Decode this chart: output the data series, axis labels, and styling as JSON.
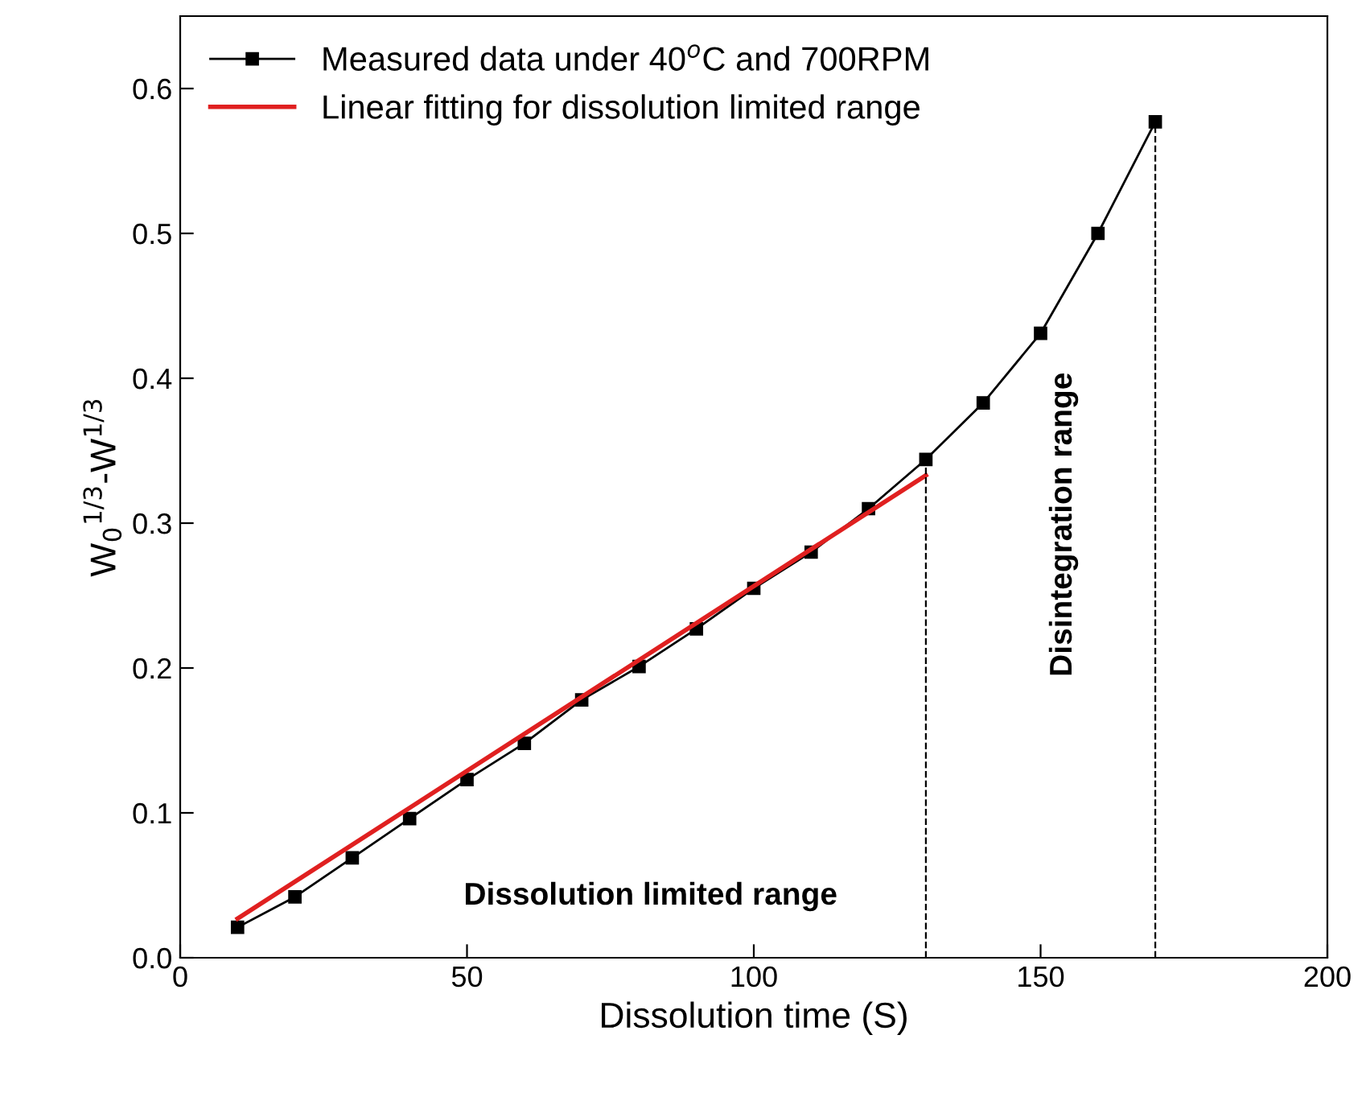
{
  "chart_data": {
    "type": "line",
    "xlabel": "Dissolution time (S)",
    "ylabel": "W$_{0}$$^{1/3}$-W$^{1/3}$",
    "xlim": [
      0,
      200
    ],
    "xticks": [
      0,
      50,
      100,
      150,
      200
    ],
    "ylim": [
      0,
      0.65
    ],
    "yticks": [
      {
        "value": 0,
        "label": "0.0"
      },
      0.1,
      0.2,
      0.3,
      0.4,
      0.5,
      0.6
    ],
    "series": [
      {
        "name": "Measured data under 40$^{o}$C and 700RPM",
        "color": "#000000",
        "marker": "square",
        "line_style": "solid",
        "x": [
          10,
          20,
          30,
          40,
          50,
          60,
          70,
          80,
          90,
          100,
          110,
          120,
          130,
          140,
          150,
          160,
          170
        ],
        "values": [
          0.021,
          0.042,
          0.069,
          0.096,
          0.123,
          0.148,
          0.178,
          0.201,
          0.227,
          0.255,
          0.28,
          0.31,
          0.344,
          0.383,
          0.431,
          0.5,
          0.577
        ]
      },
      {
        "name": "Linear fitting for dissolution limited range",
        "color": "#e02020",
        "marker": "none",
        "line_style": "solid",
        "x": [
          10,
          130
        ],
        "values": [
          0.027,
          0.333
        ]
      }
    ],
    "ref_lines": [
      {
        "axis": "x",
        "value": 130,
        "line_style": "dashed",
        "color": "#000000"
      },
      {
        "axis": "x",
        "value": 170,
        "line_style": "dashed",
        "color": "#000000"
      }
    ],
    "annotations": [
      "Dissolution limited range",
      "Disintegration range"
    ],
    "legend": "top left",
    "grid": false
  }
}
